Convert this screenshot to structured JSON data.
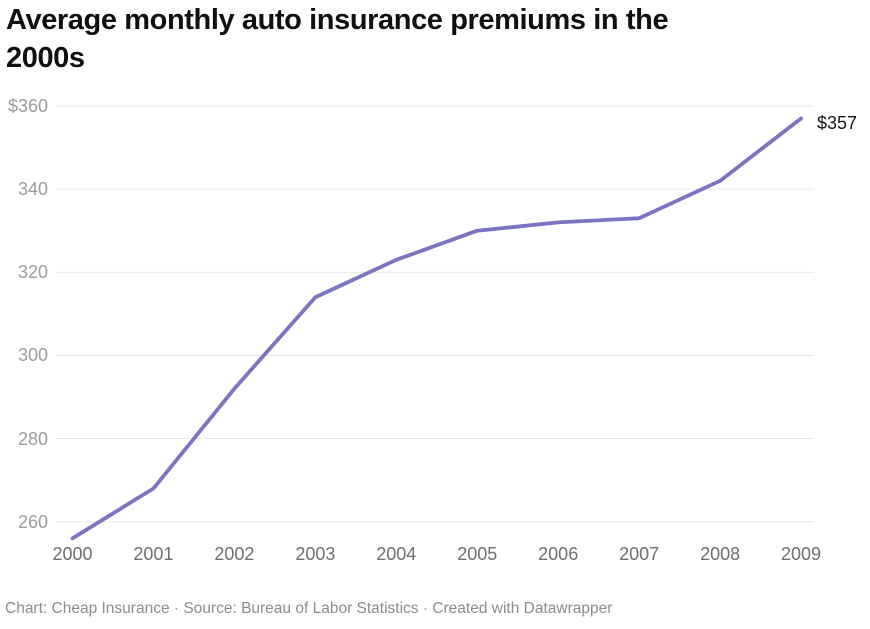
{
  "title": {
    "line1": "Average monthly auto insurance premiums in the",
    "line2": "2000s"
  },
  "footer": {
    "text": "Chart: Cheap Insurance · Source: Bureau of Labor Statistics · Created with Datawrapper"
  },
  "chart_data": {
    "type": "line",
    "title": "Average monthly auto insurance premiums in the 2000s",
    "x": [
      "2000",
      "2001",
      "2002",
      "2003",
      "2004",
      "2005",
      "2006",
      "2007",
      "2008",
      "2009"
    ],
    "values": [
      256,
      268,
      292,
      314,
      323,
      330,
      332,
      333,
      342,
      357
    ],
    "end_label": "$357",
    "yticks": [
      {
        "value": 360,
        "label": "$360"
      },
      {
        "value": 340,
        "label": "340"
      },
      {
        "value": 320,
        "label": "320"
      },
      {
        "value": 300,
        "label": "300"
      },
      {
        "value": 280,
        "label": "280"
      },
      {
        "value": 260,
        "label": "260"
      }
    ],
    "ylim": [
      255,
      362
    ],
    "xlabel": "",
    "ylabel": "",
    "grid": true,
    "legend": false,
    "line_color": "#7b74c0",
    "grid_color": "#e7e7e7"
  }
}
